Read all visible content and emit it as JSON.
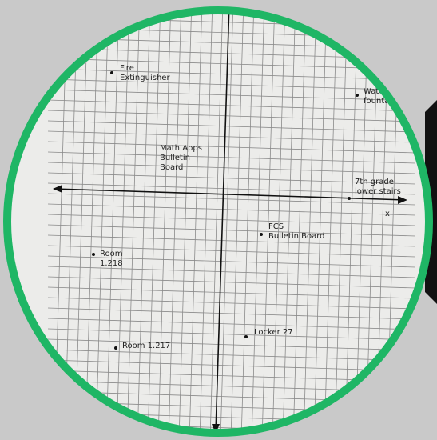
{
  "axis_label": "x",
  "points": [
    {
      "lines": [
        "Fire",
        "Extinguisher"
      ]
    },
    {
      "lines": [
        "Water",
        "founta"
      ]
    },
    {
      "lines": [
        "Math Apps",
        "Bulletin",
        "Board"
      ]
    },
    {
      "lines": [
        "7th grade",
        "lower stairs"
      ]
    },
    {
      "lines": [
        "FCS",
        "Bulletin Board"
      ]
    },
    {
      "lines": [
        "Room",
        "1.218"
      ]
    },
    {
      "lines": [
        "Room 1.217"
      ]
    },
    {
      "lines": [
        "Locker 27"
      ]
    }
  ]
}
